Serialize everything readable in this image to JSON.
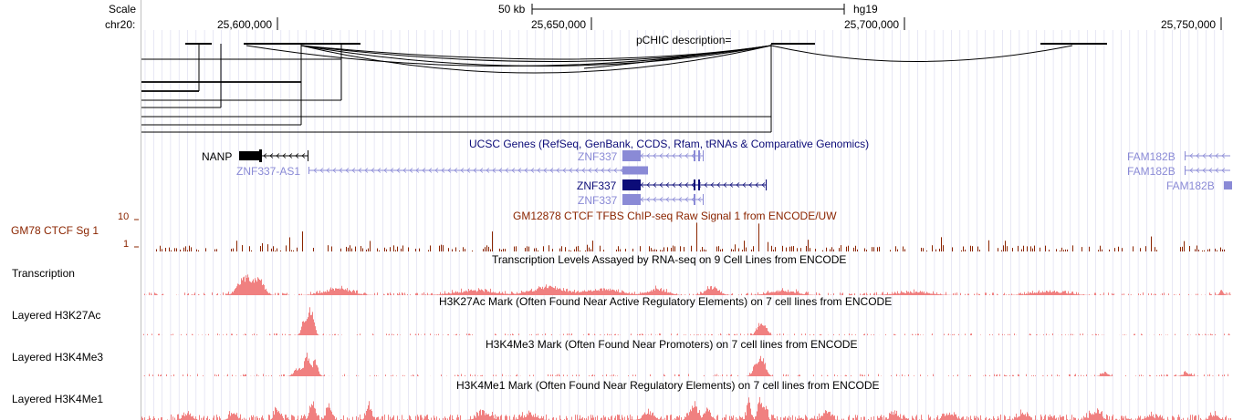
{
  "browser": {
    "scale_label": "Scale",
    "chrom_label": "chr20:",
    "scale_bar_text": "50 kb",
    "assembly": "hg19",
    "positions": [
      "25,600,000",
      "25,650,000",
      "25,700,000",
      "25,750,000"
    ]
  },
  "tracks": {
    "pchic": {
      "title": "pCHIC description="
    },
    "genes": {
      "title": "UCSC Genes (RefSeq, GenBank, CCDS, Rfam, tRNAs & Comparative Genomics)",
      "labels": {
        "nanp": "NANP",
        "znf337_as1": "ZNF337-AS1",
        "znf337_a": "ZNF337",
        "znf337_b": "ZNF337",
        "znf337_c": "ZNF337",
        "fam182b_a": "FAM182B",
        "fam182b_b": "FAM182B",
        "fam182b_c": "FAM182B"
      }
    },
    "ctcf": {
      "side_label": "GM78 CTCF Sg 1",
      "title": "GM12878 CTCF TFBS ChIP-seq Raw Signal 1 from ENCODE/UW",
      "axis_top": "10",
      "axis_bottom": "1"
    },
    "transcription": {
      "side_label": "Transcription",
      "title": "Transcription Levels Assayed by RNA-seq on 9 Cell Lines from ENCODE"
    },
    "h3k27ac": {
      "side_label": "Layered H3K27Ac",
      "title": "H3K27Ac Mark (Often Found Near Active Regulatory Elements) on 7 cell lines from ENCODE"
    },
    "h3k4me3": {
      "side_label": "Layered H3K4Me3",
      "title": "H3K4Me3 Mark (Often Found Near Promoters) on 7 cell lines from ENCODE"
    },
    "h3k4me1": {
      "side_label": "Layered H3K4Me1",
      "title": "H3K4Me1 Mark (Often Found Near Regulatory Elements) on 7 cell lines from ENCODE"
    }
  },
  "colors": {
    "gene_dark": "#0c0c78",
    "gene_light": "#8a8ad6",
    "ctcf": "#8b2500",
    "histone": "#f08080",
    "grid": "#d8d8ee"
  }
}
